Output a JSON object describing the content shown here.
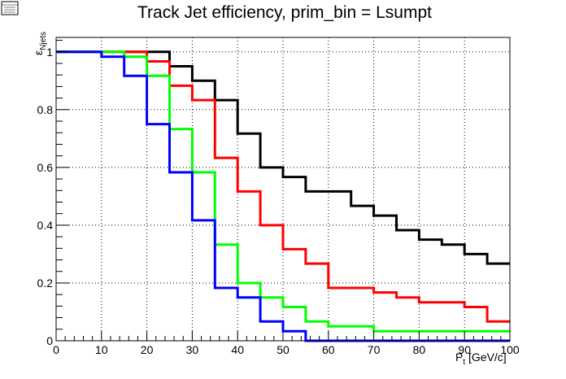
{
  "chart_data": {
    "type": "line",
    "step": true,
    "title": "Track Jet efficiency, prim_bin = Lsumpt",
    "xlabel_main": "P",
    "xlabel_sub": "t",
    "xlabel_unit": " [GeV/c]",
    "ylabel_main": "ε",
    "ylabel_sub": "Njets",
    "xlim": [
      0,
      100
    ],
    "ylim": [
      0,
      1.05
    ],
    "x_ticks": [
      0,
      10,
      20,
      30,
      40,
      50,
      60,
      70,
      80,
      90,
      100
    ],
    "y_ticks": [
      0,
      0.2,
      0.4,
      0.6,
      0.8,
      1
    ],
    "x_tick_labels": [
      "0",
      "10",
      "20",
      "30",
      "40",
      "50",
      "60",
      "70",
      "80",
      "90",
      "100"
    ],
    "y_tick_labels": [
      "0",
      "0.2",
      "0.4",
      "0.6",
      "0.8",
      "1"
    ],
    "grid": true,
    "bin_edges": [
      0,
      5,
      10,
      15,
      20,
      25,
      30,
      35,
      40,
      45,
      50,
      55,
      60,
      65,
      70,
      75,
      80,
      85,
      90,
      95,
      100
    ],
    "series": [
      {
        "color": "#000000",
        "values": [
          1,
          1,
          1,
          1,
          1,
          0.95,
          0.9,
          0.833,
          0.717,
          0.6,
          0.567,
          0.517,
          0.517,
          0.467,
          0.433,
          0.383,
          0.35,
          0.333,
          0.3,
          0.267
        ]
      },
      {
        "color": "#ff0000",
        "values": [
          1,
          1,
          1,
          1,
          0.967,
          0.883,
          0.833,
          0.633,
          0.517,
          0.4,
          0.317,
          0.267,
          0.183,
          0.183,
          0.167,
          0.15,
          0.133,
          0.133,
          0.117,
          0.067
        ]
      },
      {
        "color": "#00ff00",
        "values": [
          1,
          1,
          1,
          0.983,
          0.917,
          0.733,
          0.583,
          0.333,
          0.2,
          0.15,
          0.117,
          0.067,
          0.05,
          0.05,
          0.033,
          0.033,
          0.033,
          0.033,
          0.033,
          0.033
        ]
      },
      {
        "color": "#0000ff",
        "values": [
          1,
          1,
          0.983,
          0.917,
          0.75,
          0.583,
          0.417,
          0.183,
          0.15,
          0.067,
          0.033,
          0,
          0,
          0,
          0,
          0,
          0,
          0,
          0,
          0
        ]
      }
    ]
  }
}
